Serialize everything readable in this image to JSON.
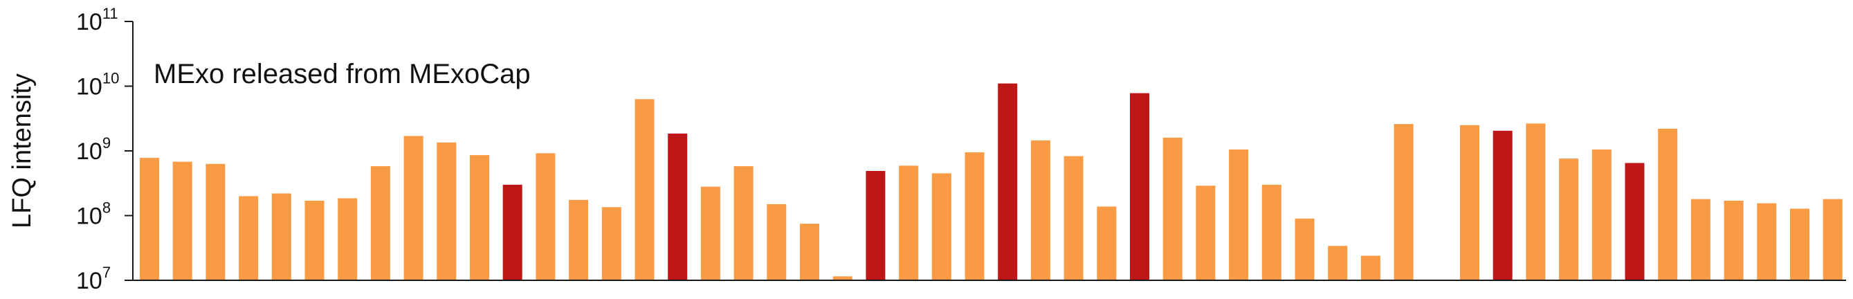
{
  "chart_data": {
    "type": "bar",
    "title": "",
    "annotation": "MExo released from MExoCap",
    "xlabel": "",
    "ylabel": "LFQ intensity",
    "yscale": "log",
    "ylim": [
      10000000,
      100000000000
    ],
    "yticks": [
      {
        "base": "10",
        "exp": "7",
        "value": 10000000
      },
      {
        "base": "10",
        "exp": "8",
        "value": 100000000
      },
      {
        "base": "10",
        "exp": "9",
        "value": 1000000000
      },
      {
        "base": "10",
        "exp": "10",
        "value": 10000000000
      },
      {
        "base": "10",
        "exp": "11",
        "value": 100000000000
      }
    ],
    "grid": false,
    "legend": "none",
    "colors": {
      "default": "#F99A45",
      "highlight": "#BE1717",
      "axis": "#1A1A1A"
    },
    "values": [
      780000000,
      680000000,
      630000000,
      200000000,
      220000000,
      170000000,
      185000000,
      580000000,
      1700000000,
      1350000000,
      860000000,
      300000000,
      920000000,
      175000000,
      135000000,
      6300000000,
      1850000000,
      280000000,
      580000000,
      150000000,
      75000000,
      11500000,
      490000000,
      590000000,
      450000000,
      950000000,
      11000000000,
      1450000000,
      830000000,
      138000000,
      7800000000,
      1600000000,
      290000000,
      1050000000,
      300000000,
      90000000,
      34000000,
      24000000,
      2600000000,
      null,
      2500000000,
      2050000000,
      2650000000,
      760000000,
      1050000000,
      650000000,
      2200000000,
      180000000,
      170000000,
      155000000,
      128000000,
      180000000
    ],
    "highlighted": [
      11,
      16,
      22,
      26,
      30,
      41,
      45
    ]
  }
}
